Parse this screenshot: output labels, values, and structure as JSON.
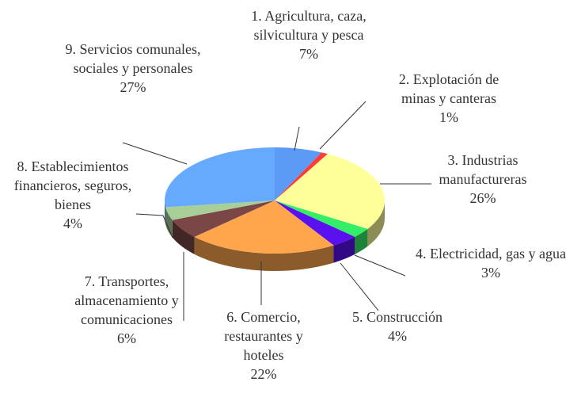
{
  "chart_data": {
    "type": "pie",
    "categories": [
      "1. Agricultura, caza, silvicultura y pesca",
      "2. Explotación de minas y canteras",
      "3. Industrias manufactureras",
      "4. Electricidad, gas y agua",
      "5. Construcción",
      "6. Comercio, restaurantes y hoteles",
      "7. Transportes, almacenamiento y comunicaciones",
      "8. Establecimientos financieros, seguros, bienes",
      "9. Servicios comunales, sociales y personales"
    ],
    "values": [
      7,
      1,
      26,
      3,
      4,
      22,
      6,
      4,
      27
    ],
    "value_labels": [
      "7%",
      "1%",
      "26%",
      "3%",
      "4%",
      "22%",
      "6%",
      "4%",
      "27%"
    ],
    "colors": [
      "#5b9bf5",
      "#ff3b3b",
      "#ffff99",
      "#33ee66",
      "#5b10f0",
      "#ffa64d",
      "#7a4646",
      "#a8cf98",
      "#66aaff"
    ]
  }
}
